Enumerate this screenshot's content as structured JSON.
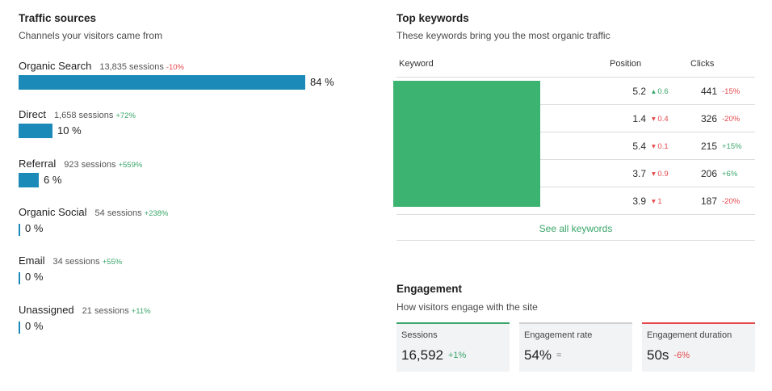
{
  "traffic": {
    "title": "Traffic sources",
    "subtitle": "Channels your visitors came from",
    "sources": [
      {
        "name": "Organic Search",
        "sessions": "13,835 sessions",
        "delta": "-10%",
        "trend": "neg",
        "percent_label": "84 %",
        "share": 84
      },
      {
        "name": "Direct",
        "sessions": "1,658 sessions",
        "delta": "+72%",
        "trend": "pos",
        "percent_label": "10 %",
        "share": 10
      },
      {
        "name": "Referral",
        "sessions": "923 sessions",
        "delta": "+559%",
        "trend": "pos",
        "percent_label": "6 %",
        "share": 6
      },
      {
        "name": "Organic Social",
        "sessions": "54 sessions",
        "delta": "+238%",
        "trend": "pos",
        "percent_label": "0 %",
        "share": 0
      },
      {
        "name": "Email",
        "sessions": "34 sessions",
        "delta": "+55%",
        "trend": "pos",
        "percent_label": "0 %",
        "share": 0
      },
      {
        "name": "Unassigned",
        "sessions": "21 sessions",
        "delta": "+11%",
        "trend": "pos",
        "percent_label": "0 %",
        "share": 0
      }
    ],
    "bar_color": "#1b8ab8"
  },
  "keywords": {
    "title": "Top keywords",
    "subtitle": "These keywords bring you the most organic traffic",
    "columns": {
      "keyword": "Keyword",
      "position": "Position",
      "clicks": "Clicks"
    },
    "rows": [
      {
        "position": "5.2",
        "pos_delta": "▴ 0.6",
        "pos_trend": "pos",
        "clicks": "441",
        "clicks_delta": "-15%",
        "clicks_trend": "neg"
      },
      {
        "position": "1.4",
        "pos_delta": "▾ 0.4",
        "pos_trend": "neg",
        "clicks": "326",
        "clicks_delta": "-20%",
        "clicks_trend": "neg"
      },
      {
        "position": "5.4",
        "pos_delta": "▾ 0.1",
        "pos_trend": "neg",
        "clicks": "215",
        "clicks_delta": "+15%",
        "clicks_trend": "pos"
      },
      {
        "position": "3.7",
        "pos_delta": "▾ 0.9",
        "pos_trend": "neg",
        "clicks": "206",
        "clicks_delta": "+6%",
        "clicks_trend": "pos"
      },
      {
        "position": "3.9",
        "pos_delta": "▾ 1",
        "pos_trend": "neg",
        "clicks": "187",
        "clicks_delta": "-20%",
        "clicks_trend": "neg"
      }
    ],
    "see_all": "See all keywords",
    "redaction_color": "#3cb371"
  },
  "engagement": {
    "title": "Engagement",
    "subtitle": "How visitors engage with the site",
    "cards": [
      {
        "label": "Sessions",
        "value": "16,592",
        "delta": "+1%",
        "trend": "pos",
        "accent": "#3aa66a"
      },
      {
        "label": "Engagement rate",
        "value": "54%",
        "delta": "=",
        "trend": "neutral",
        "accent": "#d0d0d0"
      },
      {
        "label": "Engagement duration",
        "value": "50s",
        "delta": "-6%",
        "trend": "neg",
        "accent": "#e5484d"
      }
    ]
  },
  "colors": {
    "positive": "#3aa66a",
    "negative": "#e5484d"
  }
}
